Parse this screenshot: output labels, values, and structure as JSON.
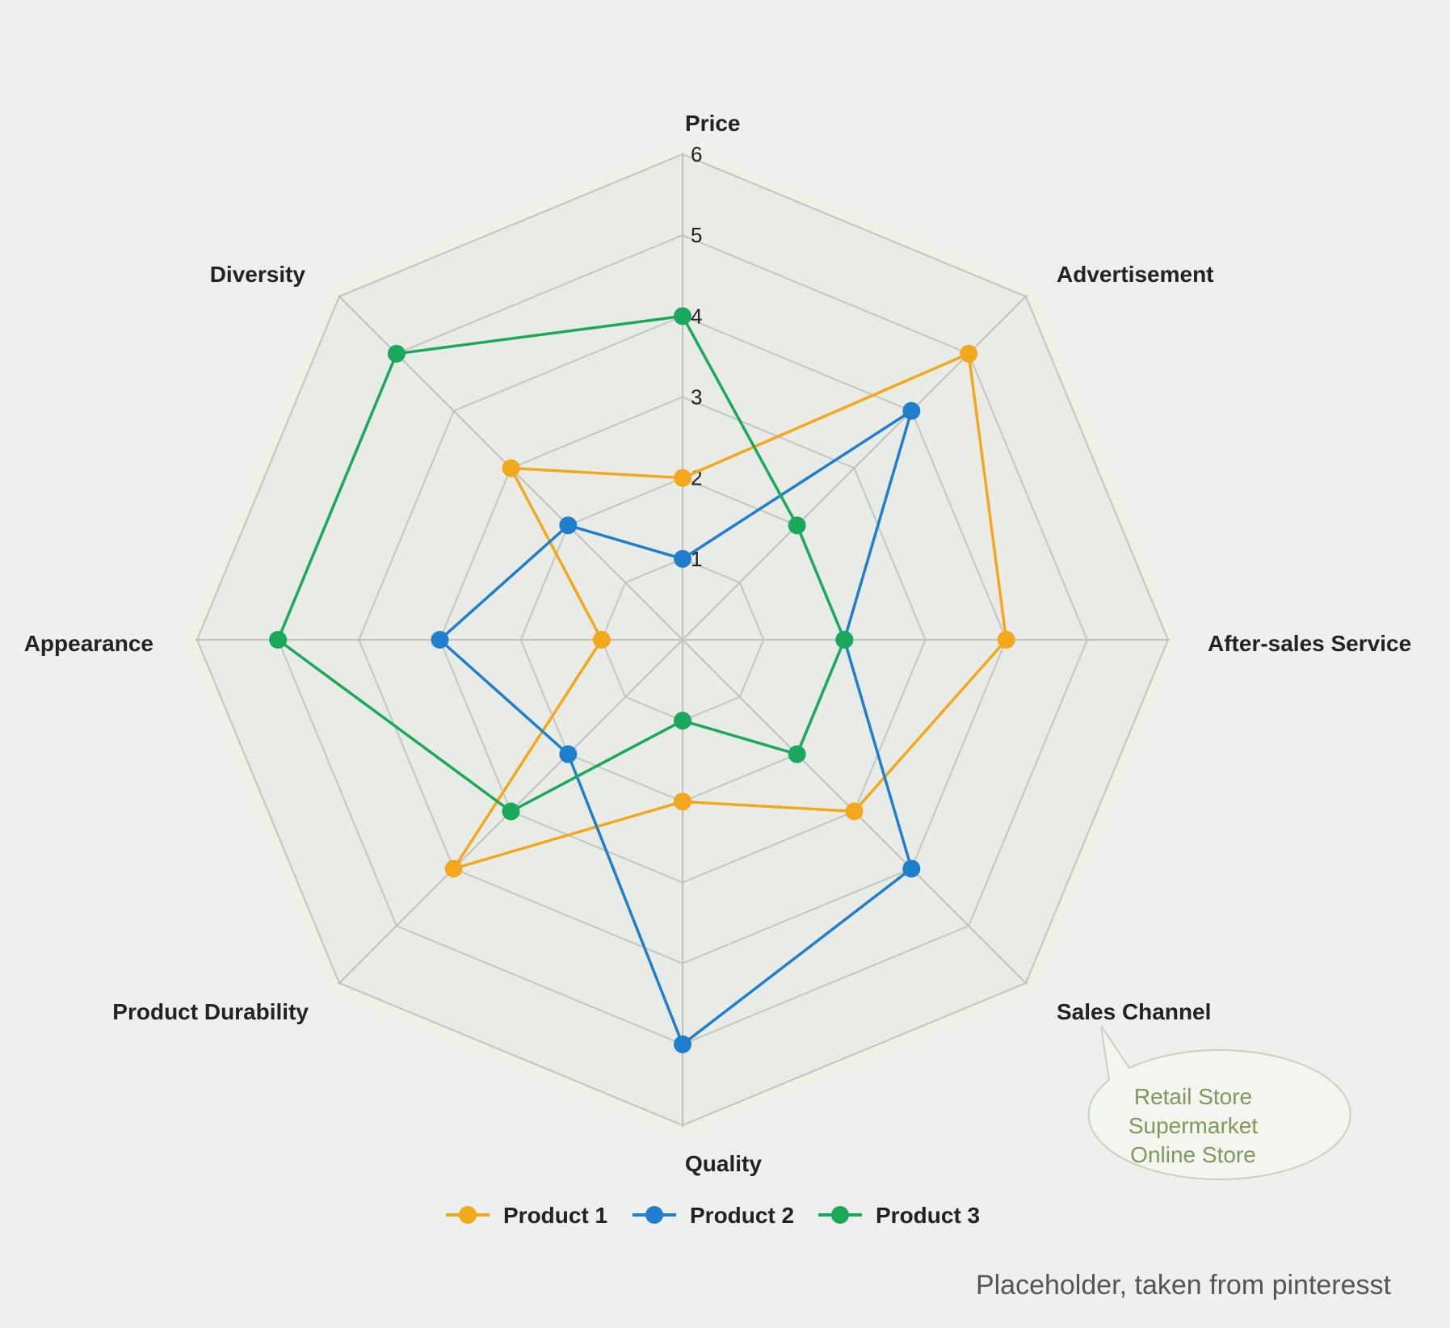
{
  "chart_data": {
    "type": "radar",
    "axes": [
      "Price",
      "Advertisement",
      "After-sales Service",
      "Sales Channel",
      "Quality",
      "Product Durability",
      "Appearance",
      "Diversity"
    ],
    "ticks": [
      "1",
      "2",
      "3",
      "4",
      "5",
      "6"
    ],
    "rmax": 6,
    "grid": true,
    "legend_position": "bottom",
    "series": [
      {
        "name": "Product 1",
        "color": "#f2a81d",
        "values": [
          2,
          5,
          4,
          3,
          2,
          4,
          1,
          3
        ]
      },
      {
        "name": "Product 2",
        "color": "#1f7fcc",
        "values": [
          1,
          4,
          2,
          4,
          5,
          2,
          3,
          2
        ]
      },
      {
        "name": "Product 3",
        "color": "#1aa85a",
        "values": [
          4,
          2,
          2,
          2,
          1,
          3,
          5,
          5
        ]
      }
    ]
  },
  "callout": {
    "lines": [
      "Retail Store",
      "Supermarket",
      "Online Store"
    ]
  },
  "footnote": "Placeholder, taken from pinteresst"
}
